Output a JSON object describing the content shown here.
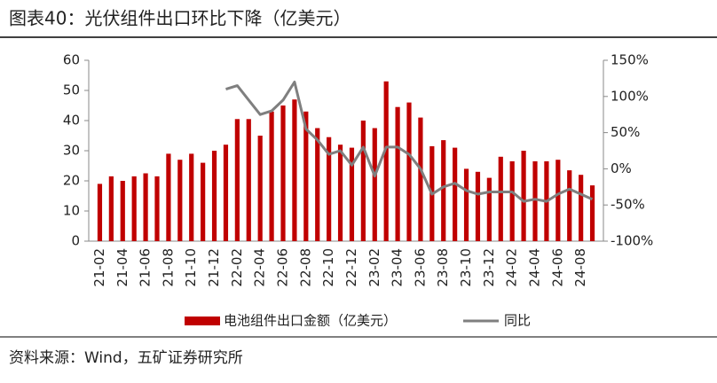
{
  "title": "图表40：光伏组件出口环比下降（亿美元）",
  "source": "资料来源：Wind，五矿证券研究所",
  "chart_data": {
    "type": "bar_line",
    "categories": [
      "21-02",
      null,
      "21-04",
      null,
      "21-06",
      null,
      "21-08",
      null,
      "21-10",
      null,
      "21-12",
      null,
      "22-02",
      null,
      "22-04",
      null,
      "22-06",
      null,
      "22-08",
      null,
      "22-10",
      null,
      "22-12",
      null,
      "23-02",
      null,
      "23-04",
      null,
      "23-06",
      null,
      "23-08",
      null,
      "23-10",
      null,
      "23-12",
      null,
      "24-02",
      null,
      "24-04",
      null,
      "24-06",
      null,
      "24-08",
      null
    ],
    "series": [
      {
        "name": "电池组件出口金额（亿美元）",
        "color": "#c00000",
        "type": "bar",
        "values": [
          19,
          21.5,
          20,
          21.5,
          22.5,
          21.5,
          29,
          27,
          29,
          26,
          30,
          32,
          40.5,
          40.5,
          35,
          43,
          45,
          47,
          43,
          37.5,
          34.5,
          32,
          31,
          40,
          37.5,
          53,
          44.5,
          46,
          41,
          31.5,
          33.5,
          31,
          24,
          23,
          21,
          28,
          26.5,
          30,
          26.5,
          26.5,
          27,
          23.5,
          22,
          18.5
        ]
      },
      {
        "name": "同比",
        "color": "#7f7f7f",
        "type": "line",
        "axis": "y2",
        "values": [
          null,
          null,
          null,
          null,
          null,
          null,
          null,
          null,
          null,
          null,
          null,
          110,
          115,
          95,
          75,
          80,
          95,
          120,
          55,
          40,
          20,
          25,
          5,
          30,
          -10,
          30,
          30,
          20,
          0,
          -35,
          -25,
          -20,
          -30,
          -35,
          -32,
          -32,
          -32,
          -45,
          -42,
          -45,
          -35,
          -28,
          -35,
          -42
        ]
      }
    ],
    "ylim": [
      0,
      60
    ],
    "yticks": [
      0,
      10,
      20,
      30,
      40,
      50,
      60
    ],
    "y2lim": [
      -100,
      150
    ],
    "y2ticks": [
      {
        "value": -100,
        "label": "-100%"
      },
      {
        "value": -50,
        "label": "-50%"
      },
      {
        "value": 0,
        "label": "0%"
      },
      {
        "value": 50,
        "label": "50%"
      },
      {
        "value": 100,
        "label": "100%"
      },
      {
        "value": 150,
        "label": "150%"
      }
    ]
  }
}
